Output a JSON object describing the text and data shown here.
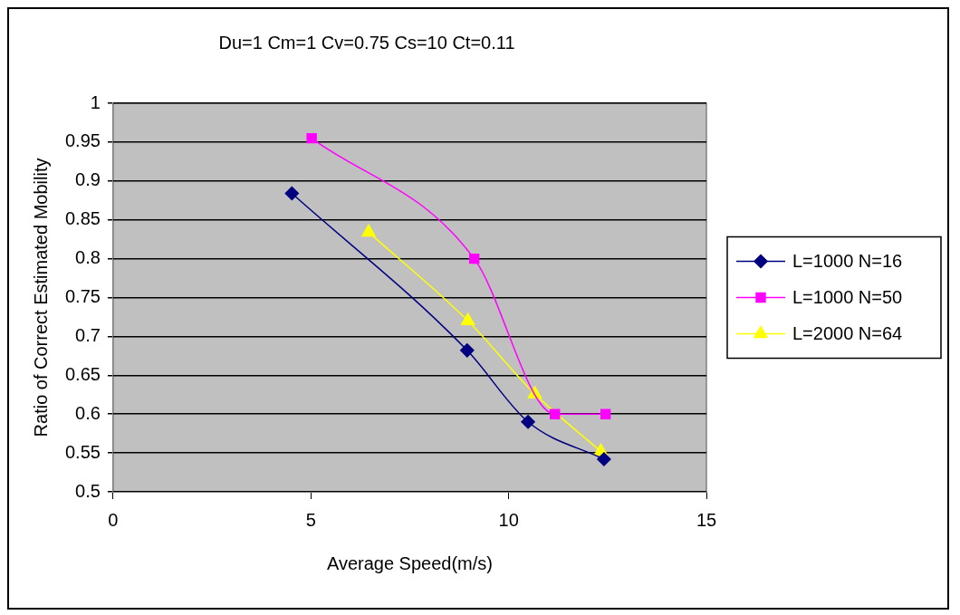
{
  "chart_data": {
    "type": "line",
    "title": "Du=1 Cm=1 Cv=0.75 Cs=10 Ct=0.11",
    "xlabel": "Average Speed(m/s)",
    "ylabel": "Ratio of Correct Estimated Mobility",
    "xlim": [
      0,
      15
    ],
    "xticks": [
      0,
      5,
      10,
      15
    ],
    "ylim": [
      0.5,
      1
    ],
    "yticks": [
      0.5,
      0.55,
      0.6,
      0.65,
      0.7,
      0.75,
      0.8,
      0.85,
      0.9,
      0.95,
      1
    ],
    "grid": "y",
    "legend": "right",
    "series": [
      {
        "name": "L=1000 N=16",
        "color": "#000080",
        "marker": "diamond",
        "x": [
          4.52,
          8.95,
          10.49,
          12.41
        ],
        "values": [
          0.884,
          0.682,
          0.59,
          0.542
        ]
      },
      {
        "name": "L=1000 N=50",
        "color": "#ff00ff",
        "marker": "square",
        "x": [
          5.02,
          9.13,
          11.17,
          12.45
        ],
        "values": [
          0.955,
          0.8,
          0.6,
          0.6
        ]
      },
      {
        "name": "L=2000 N=64",
        "color": "#ffff00",
        "marker": "triangle",
        "x": [
          6.46,
          8.97,
          10.66,
          12.33
        ],
        "values": [
          0.834,
          0.72,
          0.626,
          0.552
        ]
      }
    ]
  }
}
